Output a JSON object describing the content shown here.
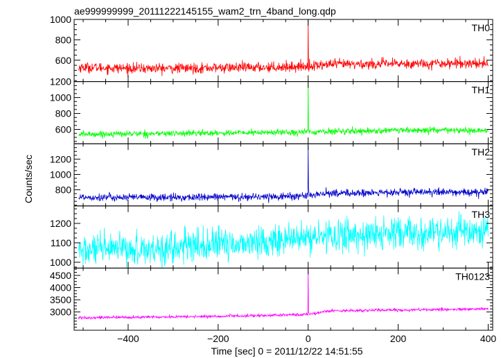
{
  "chart_data": {
    "type": "line",
    "title": "ae999999999_20111222145155_wam2_trn_4band_long.qdp",
    "xlabel": "Time [sec] 0 = 2011/12/22 14:51:55",
    "ylabel": "Counts/sec",
    "xlim": [
      -520,
      410
    ],
    "x_ticks": [
      -400,
      -200,
      0,
      200,
      400
    ],
    "x_tick_labels": [
      "−400",
      "−200",
      "0",
      "200",
      "400"
    ],
    "grid": false,
    "x_range": [
      -510,
      400
    ],
    "series": [
      {
        "name": "TH0",
        "color": "#ff0000",
        "ylim": [
          390,
          1000
        ],
        "yticks": [
          600,
          800,
          1000
        ],
        "x": [
          -500,
          -400,
          -300,
          -200,
          -100,
          -50,
          0,
          50,
          100,
          200,
          300,
          400
        ],
        "values": [
          530,
          520,
          520,
          525,
          530,
          535,
          540,
          560,
          560,
          565,
          570,
          570
        ],
        "noise": 45,
        "spike_peak": 1000,
        "start_y": 500
      },
      {
        "name": "TH1",
        "color": "#00ff00",
        "ylim": [
          420,
          1200
        ],
        "yticks": [
          600,
          800,
          1000,
          1200
        ],
        "x": [
          -500,
          -400,
          -300,
          -200,
          -100,
          -50,
          0,
          50,
          100,
          200,
          300,
          400
        ],
        "values": [
          540,
          545,
          550,
          555,
          560,
          565,
          565,
          575,
          580,
          585,
          590,
          580
        ],
        "noise": 35,
        "spike_peak": 1200,
        "start_y": 520
      },
      {
        "name": "TH2",
        "color": "#0000cc",
        "ylim": [
          590,
          1400
        ],
        "yticks": [
          800,
          1000,
          1200
        ],
        "x": [
          -500,
          -400,
          -300,
          -200,
          -100,
          -50,
          0,
          50,
          100,
          200,
          300,
          400
        ],
        "values": [
          705,
          700,
          700,
          705,
          710,
          715,
          720,
          760,
          755,
          765,
          770,
          765
        ],
        "noise": 45,
        "spike_peak": 1380,
        "start_y": 690
      },
      {
        "name": "TH3",
        "color": "#00ffff",
        "ylim": [
          970,
          1290
        ],
        "yticks": [
          1000,
          1100,
          1200
        ],
        "x": [
          -500,
          -400,
          -300,
          -200,
          -100,
          -50,
          0,
          50,
          100,
          200,
          300,
          400
        ],
        "values": [
          1060,
          1065,
          1075,
          1090,
          1105,
          1115,
          1125,
          1135,
          1140,
          1145,
          1150,
          1155
        ],
        "noise": 75,
        "spike_peak": null,
        "start_y": 1060
      },
      {
        "name": "TH0123",
        "color": "#ff00ff",
        "ylim": [
          2250,
          4800
        ],
        "yticks": [
          3000,
          3500,
          4000,
          4500
        ],
        "x": [
          -500,
          -400,
          -300,
          -200,
          -100,
          -50,
          0,
          50,
          100,
          200,
          300,
          400
        ],
        "values": [
          2770,
          2780,
          2800,
          2820,
          2850,
          2880,
          2900,
          3050,
          3060,
          3080,
          3100,
          3120
        ],
        "noise": 55,
        "spike_peak": 4800,
        "start_y": 2700
      }
    ]
  }
}
